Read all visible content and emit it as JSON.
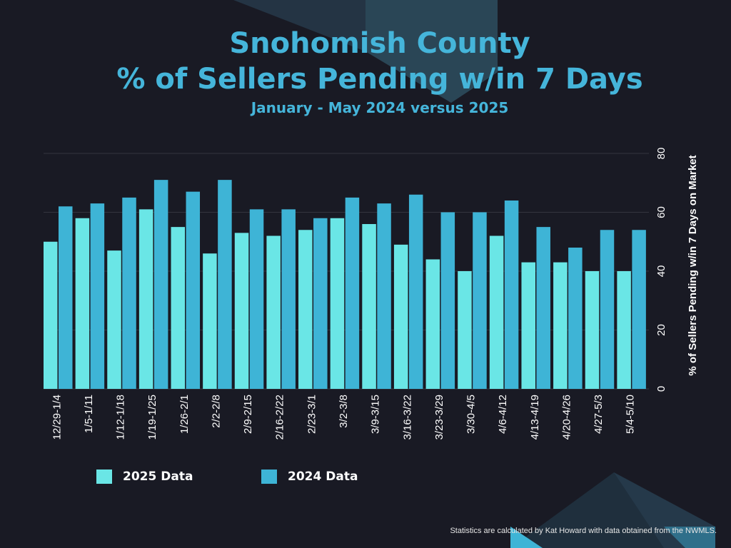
{
  "header": {
    "title_line1": "Snohomish County",
    "title_line2": "% of Sellers Pending w/in 7 Days",
    "subtitle": "January - May 2024 versus 2025"
  },
  "colors": {
    "background": "#191a24",
    "series_2025": "#6ae6e6",
    "series_2024": "#3eb4d6",
    "title": "#45b5da"
  },
  "chart_data": {
    "type": "bar",
    "ylabel": "% of Sellers Pending w/in 7 Days on Market",
    "ylim": [
      0,
      80
    ],
    "yticks": [
      0,
      20,
      40,
      60,
      80
    ],
    "y_axis_side": "right",
    "legend_position": "bottom",
    "categories": [
      "12/29-1/4",
      "1/5-1/11",
      "1/12-1/18",
      "1/19-1/25",
      "1/26-2/1",
      "2/2-2/8",
      "2/9-2/15",
      "2/16-2/22",
      "2/23-3/1",
      "3/2-3/8",
      "3/9-3/15",
      "3/16-3/22",
      "3/23-3/29",
      "3/30-4/5",
      "4/6-4/12",
      "4/13-4/19",
      "4/20-4/26",
      "4/27-5/3",
      "5/4-5/10"
    ],
    "series": [
      {
        "name": "2025 Data",
        "color": "#6ae6e6",
        "values": [
          50,
          58,
          47,
          61,
          55,
          46,
          53,
          52,
          54,
          58,
          56,
          49,
          44,
          40,
          52,
          43,
          43,
          40,
          40
        ]
      },
      {
        "name": "2024 Data",
        "color": "#3eb4d6",
        "values": [
          62,
          63,
          65,
          71,
          67,
          71,
          61,
          61,
          58,
          65,
          63,
          66,
          60,
          60,
          64,
          55,
          48,
          54,
          54
        ]
      }
    ]
  },
  "footnote": "Statistics are calculated by Kat Howard with data obtained from the NWMLS."
}
